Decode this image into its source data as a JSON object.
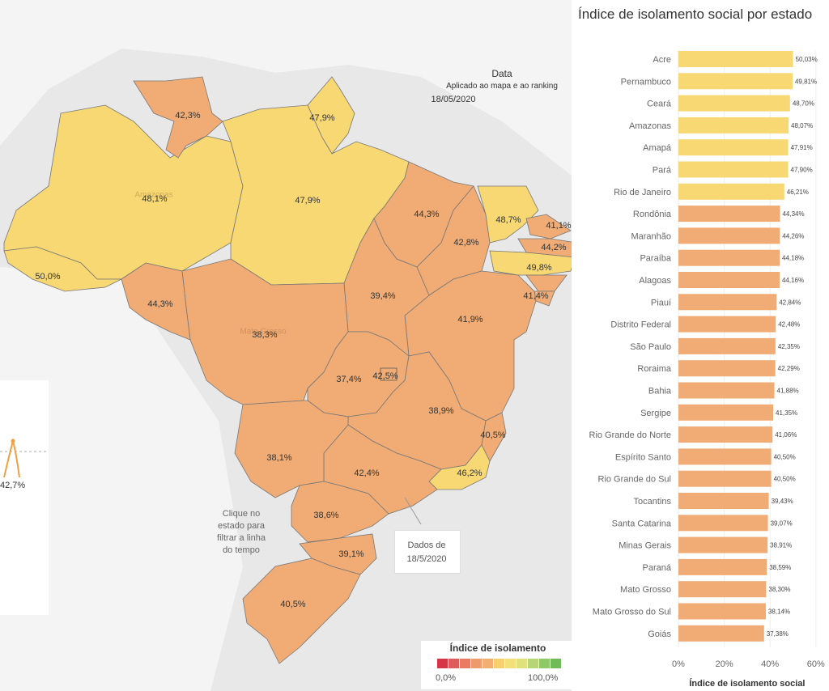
{
  "map": {
    "data_label": "Data",
    "data_subtitle": "Aplicado ao mapa e ao ranking",
    "data_date": "18/05/2020",
    "click_note": [
      "Clique no",
      "estado para",
      "filtrar a linha",
      "do tempo"
    ],
    "tooltip_line1": "Dados de",
    "tooltip_line2": "18/5/2020",
    "timeline_value": "42,7%",
    "state_labels": [
      {
        "text": "42,3%"
      },
      {
        "text": "47,9%"
      },
      {
        "text": "48,1%"
      },
      {
        "text": "47,9%"
      },
      {
        "text": "50,0%"
      },
      {
        "text": "44,3%"
      },
      {
        "text": "42,8%"
      },
      {
        "text": "48,7%"
      },
      {
        "text": "41,1%"
      },
      {
        "text": "44,2%"
      },
      {
        "text": "49,8%"
      },
      {
        "text": "41,4%"
      },
      {
        "text": "44,3%"
      },
      {
        "text": "38,3%"
      },
      {
        "text": "39,4%"
      },
      {
        "text": "41,9%"
      },
      {
        "text": "37,4%"
      },
      {
        "text": "42,5%"
      },
      {
        "text": "38,9%"
      },
      {
        "text": "40,5%"
      },
      {
        "text": "38,1%"
      },
      {
        "text": "42,4%"
      },
      {
        "text": "46,2%"
      },
      {
        "text": "38,6%"
      },
      {
        "text": "39,1%"
      },
      {
        "text": "40,5%"
      }
    ],
    "faded_labels": [
      "Amazonas",
      "Mato Grosso"
    ],
    "colors": {
      "yellow": "#f8d872",
      "orange": "#f0ac74",
      "background": "#e8e8e8",
      "land": "#f4f4f4"
    }
  },
  "legend": {
    "title": "Índice de isolamento",
    "min_label": "0,0%",
    "max_label": "100,0%",
    "colors": [
      "#d63447",
      "#e05a5a",
      "#e97b62",
      "#ef9a6a",
      "#f1b072",
      "#f6d06f",
      "#f4e07a",
      "#dfe27c",
      "#b6d676",
      "#8ec966",
      "#6fbb58"
    ]
  },
  "chart_data": {
    "type": "bar",
    "title": "Índice de isolamento social por estado",
    "xlabel": "Índice de isolamento social",
    "ylabel": "",
    "xlim": [
      0,
      60
    ],
    "x_ticks": [
      "0%",
      "20%",
      "40%",
      "60%"
    ],
    "categories": [
      "Acre",
      "Pernambuco",
      "Ceará",
      "Amazonas",
      "Amapá",
      "Pará",
      "Rio de Janeiro",
      "Rondônia",
      "Maranhão",
      "Paraíba",
      "Alagoas",
      "Piauí",
      "Distrito Federal",
      "São Paulo",
      "Roraima",
      "Bahia",
      "Sergipe",
      "Rio Grande do Norte",
      "Espírito Santo",
      "Rio Grande do Sul",
      "Tocantins",
      "Santa Catarina",
      "Minas Gerais",
      "Paraná",
      "Mato Grosso",
      "Mato Grosso do Sul",
      "Goiás"
    ],
    "values": [
      50.03,
      49.81,
      48.7,
      48.07,
      47.91,
      47.9,
      46.21,
      44.34,
      44.26,
      44.18,
      44.16,
      42.84,
      42.48,
      42.35,
      42.29,
      41.88,
      41.35,
      41.06,
      40.5,
      40.5,
      39.43,
      39.07,
      38.91,
      38.59,
      38.3,
      38.14,
      37.38
    ],
    "value_labels": [
      "50,03%",
      "49,81%",
      "48,70%",
      "48,07%",
      "47,91%",
      "47,90%",
      "46,21%",
      "44,34%",
      "44,26%",
      "44,18%",
      "44,16%",
      "42,84%",
      "42,48%",
      "42,35%",
      "42,29%",
      "41,88%",
      "41,35%",
      "41,06%",
      "40,50%",
      "40,50%",
      "39,43%",
      "39,07%",
      "38,91%",
      "38,59%",
      "38,30%",
      "38,14%",
      "37,38%"
    ],
    "colors": {
      "high": "#f8d872",
      "low": "#f0ac74"
    },
    "highlight_threshold": 46
  }
}
